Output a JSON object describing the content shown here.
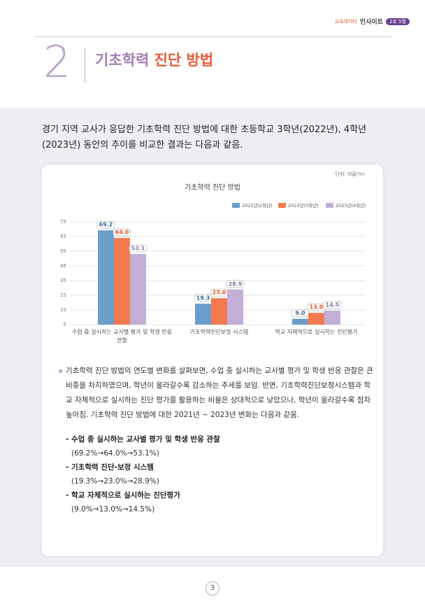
{
  "header": {
    "brand": "교육데이터",
    "brand_title": "인사이트",
    "issue": "2호 5월",
    "section_number": "2",
    "title_part1": "기초학력",
    "title_part2": "진단 방법"
  },
  "intro": "경기 지역 교사가 응답한 기초학력 진단 방법에 대한 초등학교 3학년(2022년), 4학년(2023년) 동안의 추이를 비교한 결과는 다음과 같음.",
  "chart_data": {
    "type": "bar",
    "unit": "단위: 비율(%)",
    "title": "기초학력 진단 방법",
    "categories": [
      "수업 중 실시하는 교사별 평가 및 학생 반응 관찰",
      "기초학력진단보정 시스템",
      "학교 자체적으로 실시하는 진단평가"
    ],
    "series": [
      {
        "name": "2021년(2학년)",
        "color": "#6a9fcb",
        "values": [
          69.2,
          19.3,
          9.0
        ],
        "value_labels": [
          "69.2",
          "19.3",
          "9.0"
        ]
      },
      {
        "name": "2022년(3학년)",
        "color": "#f47a4e",
        "values": [
          64.0,
          23.0,
          13.0
        ],
        "value_labels": [
          "64.0",
          "23.0",
          "13.0"
        ]
      },
      {
        "name": "2023년(4학년)",
        "color": "#c3aed6",
        "values": [
          53.1,
          28.9,
          14.5
        ],
        "value_labels": [
          "53.1",
          "28.9",
          "14.5"
        ]
      }
    ],
    "ylim": [
      5,
      75
    ],
    "yticks": [
      5,
      15,
      25,
      35,
      45,
      55,
      65,
      75
    ],
    "grid": true,
    "legend": "top-right"
  },
  "body": {
    "paragraph": "기초학력 진단 방법의 연도별 변화를 살펴보면, 수업 중 실시하는 교사별 평가 및 학생 반응 관찰은 큰 비중을 차지하였으며, 학년이 올라갈수록 감소하는 추세를 보임. 반면, 기초학력진단보정시스템과 학교 자체적으로 실시하는 진단 평가를 활용하는 비율은 상대적으로 낮았으나, 학년이 올라갈수록 점차 높아짐. 기초학력 진단 방법에 대한 2021년 ~ 2023년 변화는 다음과 같음.",
    "items": [
      {
        "title": "- 수업 중 실시하는 교사별 평가 및 학생 반응 관찰",
        "detail": "(69.2%→64.0%→53.1%)"
      },
      {
        "title": "- 기초학력 진단-보정 시스템",
        "detail": "(19.3%→23.0%→28.9%)"
      },
      {
        "title": "- 학교 자체적으로 실시하는 진단평가",
        "detail": "(9.0%→13.0%→14.5%)"
      }
    ]
  },
  "footer": {
    "page": "3"
  }
}
